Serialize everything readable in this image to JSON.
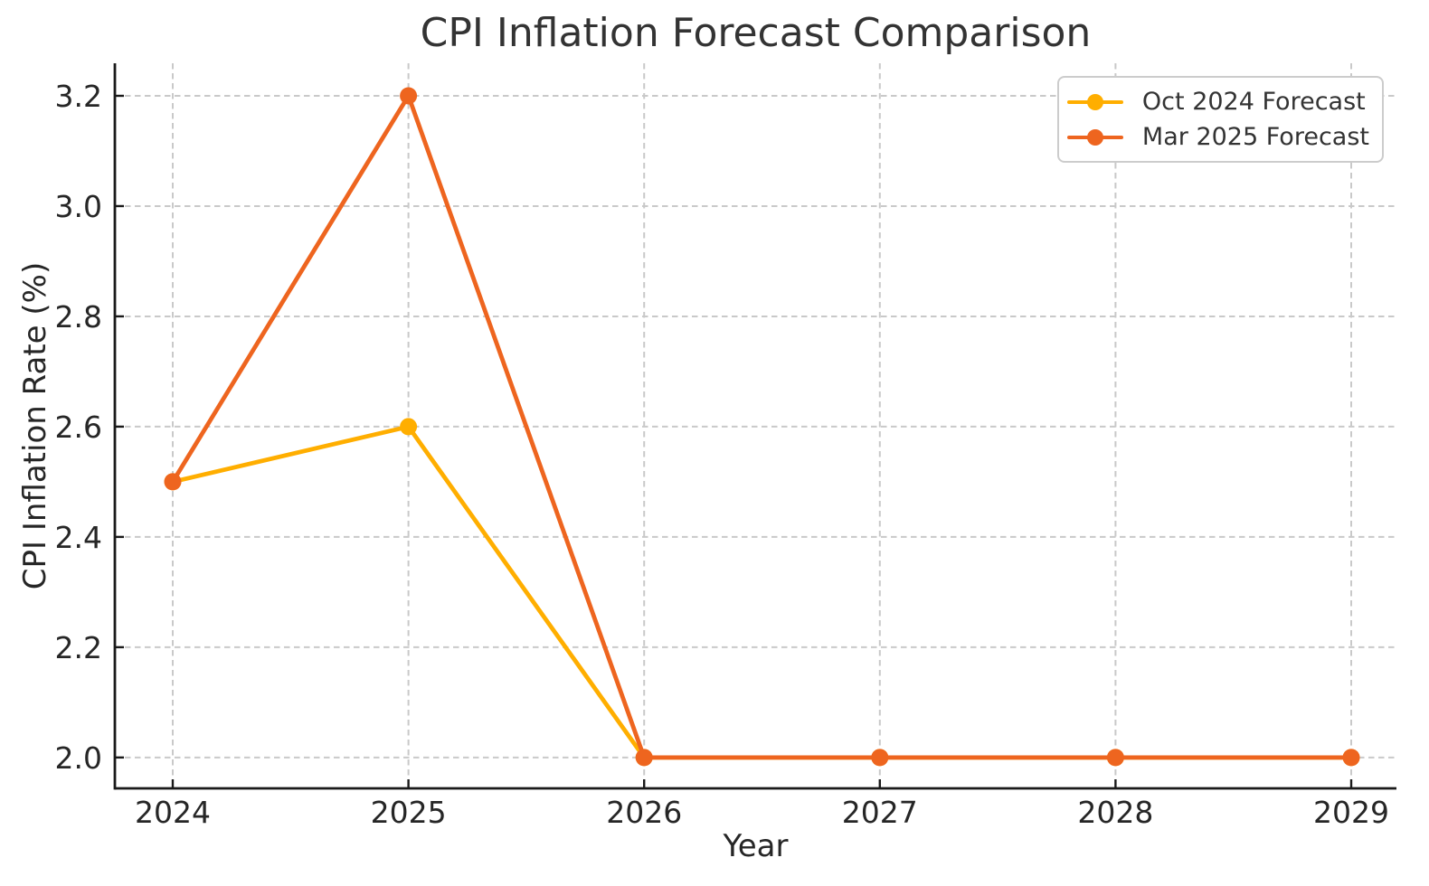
{
  "title": "CPI Inflation Forecast Comparison",
  "chart_data": {
    "type": "line",
    "x": [
      2024,
      2025,
      2026,
      2027,
      2028,
      2029
    ],
    "series": [
      {
        "name": "Oct 2024 Forecast",
        "color": "#FFAE00",
        "values": [
          2.5,
          2.6,
          2.0,
          2.0,
          2.0,
          2.0
        ]
      },
      {
        "name": "Mar 2025 Forecast",
        "color": "#EE651F",
        "values": [
          2.5,
          3.2,
          2.0,
          2.0,
          2.0,
          2.0
        ]
      }
    ],
    "xlabel": "Year",
    "ylabel": "CPI Inflation Rate (%)",
    "yticks": [
      2.0,
      2.2,
      2.4,
      2.6,
      2.8,
      3.0,
      3.2
    ],
    "ylim": [
      1.944,
      3.259
    ],
    "grid": true,
    "legend_position": "upper right"
  }
}
